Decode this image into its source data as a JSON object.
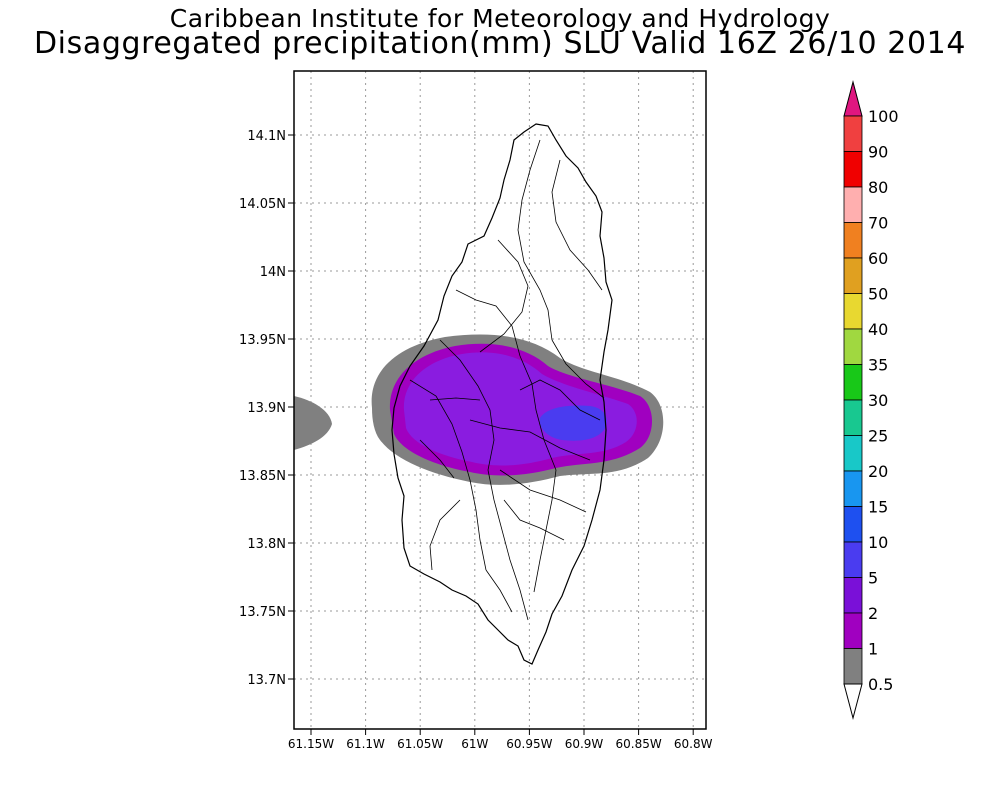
{
  "title": {
    "line1": "Caribbean Institute for Meteorology and Hydrology",
    "line2": "Disaggregated precipitation(mm) SLU Valid 16Z 26/10 2014"
  },
  "axes": {
    "lat_ticks": [
      "14.1N",
      "14.05N",
      "14N",
      "13.95N",
      "13.9N",
      "13.85N",
      "13.8N",
      "13.75N",
      "13.7N"
    ],
    "lon_ticks": [
      "61.15W",
      "61.1W",
      "61.05W",
      "61W",
      "60.95W",
      "60.9W",
      "60.85W",
      "60.8W"
    ],
    "grid": "dotted"
  },
  "colorbar": {
    "labels": [
      "100",
      "90",
      "80",
      "70",
      "60",
      "50",
      "40",
      "35",
      "30",
      "25",
      "20",
      "15",
      "10",
      "5",
      "2",
      "1",
      "0.5"
    ],
    "colors": [
      "#e01680",
      "#f04040",
      "#f00000",
      "#ffafaf",
      "#f08020",
      "#e0a020",
      "#e8d830",
      "#a0d840",
      "#18c818",
      "#18c890",
      "#18c8c8",
      "#1896f0",
      "#1e50f0",
      "#4a3cf0",
      "#7a10d8",
      "#a000c0",
      "#808080",
      "#ffffff"
    ]
  },
  "map": {
    "region": "Saint Lucia",
    "precip_colors": {
      "gt_0_5": "#808080",
      "gt_1": "#a000c0",
      "gt_2": "#8a1ce0",
      "gt_5": "#4a3cf0"
    }
  }
}
